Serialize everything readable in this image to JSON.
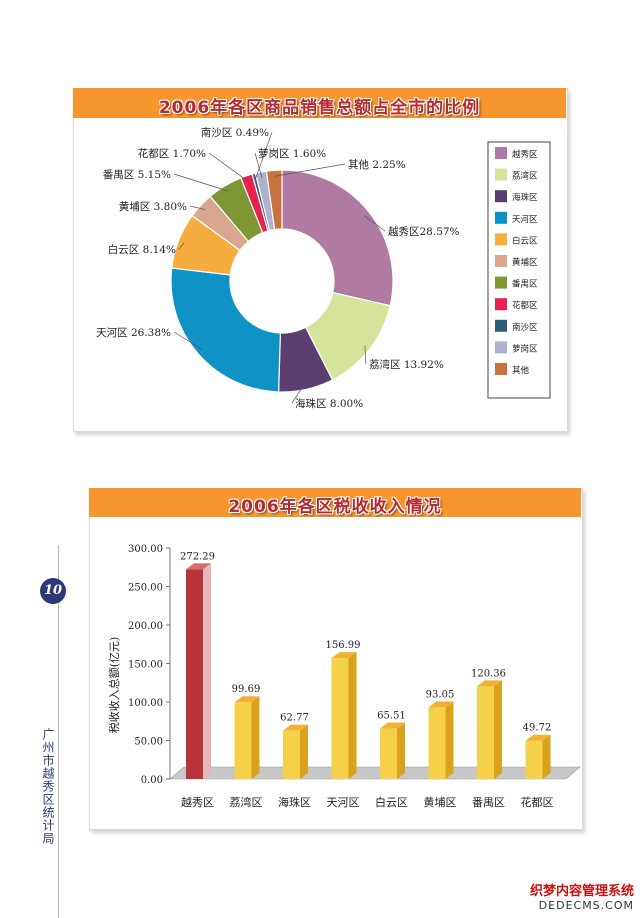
{
  "page": {
    "number": "10",
    "side_text": "广州市越秀区统计局",
    "watermark": {
      "line1": "织梦内容管理系统",
      "line2": "DEDECMS.COM"
    }
  },
  "chart_data": [
    {
      "type": "pie",
      "title": "2006年各区商品销售总额占全市的比例",
      "unit": "%",
      "donut": true,
      "legend_position": "right",
      "slices": [
        {
          "label": "越秀区",
          "value": 28.57,
          "display": "越秀区28.57%",
          "color": "#b07aa3"
        },
        {
          "label": "荔湾区",
          "value": 13.92,
          "display": "荔湾区 13.92%",
          "color": "#d6e39b"
        },
        {
          "label": "海珠区",
          "value": 8.0,
          "display": "海珠区 8.00%",
          "color": "#5a3f70"
        },
        {
          "label": "天河区",
          "value": 26.38,
          "display": "天河区 26.38%",
          "color": "#0f93c7"
        },
        {
          "label": "白云区",
          "value": 8.14,
          "display": "白云区 8.14%",
          "color": "#f5ad3f"
        },
        {
          "label": "黄埔区",
          "value": 3.8,
          "display": "黄埔区 3.80%",
          "color": "#d9a78d"
        },
        {
          "label": "番禺区",
          "value": 5.15,
          "display": "番禺区 5.15%",
          "color": "#7e9633"
        },
        {
          "label": "花都区",
          "value": 1.7,
          "display": "花都区 1.70%",
          "color": "#e8224f"
        },
        {
          "label": "南沙区",
          "value": 0.49,
          "display": "南沙区 0.49%",
          "color": "#2c5e7c"
        },
        {
          "label": "萝岗区",
          "value": 1.6,
          "display": "萝岗区 1.60%",
          "color": "#aeb2cf"
        },
        {
          "label": "其他",
          "value": 2.25,
          "display": "其他 2.25%",
          "color": "#c8723d"
        }
      ]
    },
    {
      "type": "bar",
      "title": "2006年各区税收收入情况",
      "ylabel": "税收收入总额(亿元)",
      "xlabel": "",
      "ylim": [
        0,
        300
      ],
      "yticks": [
        "0.00",
        "50.00",
        "100.00",
        "150.00",
        "200.00",
        "250.00",
        "300.00"
      ],
      "grid": false,
      "categories": [
        "越秀区",
        "荔湾区",
        "海珠区",
        "天河区",
        "白云区",
        "黄埔区",
        "番禺区",
        "花都区"
      ],
      "values": [
        272.29,
        99.69,
        62.77,
        156.99,
        65.51,
        93.05,
        120.36,
        49.72
      ],
      "value_labels": [
        "272.29",
        "99.69",
        "62.77",
        "156.99",
        "65.51",
        "93.05",
        "120.36",
        "49.72"
      ],
      "highlight_color": "#b8333a",
      "bar_color": "#f5d14a"
    }
  ]
}
